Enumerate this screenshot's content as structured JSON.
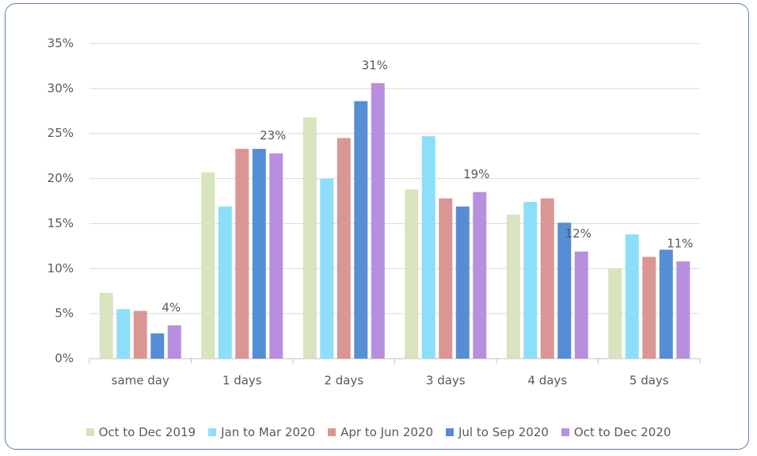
{
  "chart_data": {
    "type": "bar",
    "categories": [
      "same day",
      "1 days",
      "2 days",
      "3 days",
      "4 days",
      "5 days"
    ],
    "series": [
      {
        "name": "Oct to Dec 2019",
        "color": "#d7e4bd",
        "values": [
          7.3,
          20.7,
          26.8,
          18.8,
          16.0,
          10.0
        ]
      },
      {
        "name": "Jan to Mar 2020",
        "color": "#8ddff9",
        "values": [
          5.5,
          16.9,
          20.0,
          24.7,
          17.4,
          13.8
        ]
      },
      {
        "name": "Apr to Jun 2020",
        "color": "#d99694",
        "values": [
          5.3,
          23.3,
          24.5,
          17.8,
          17.8,
          11.3
        ]
      },
      {
        "name": "Jul to Sep 2020",
        "color": "#558ed5",
        "values": [
          2.8,
          23.3,
          28.6,
          16.9,
          15.1,
          12.1
        ]
      },
      {
        "name": "Oct to Dec 2020",
        "color": "#b88fde",
        "values": [
          3.7,
          22.8,
          30.6,
          18.5,
          11.9,
          10.8
        ],
        "value_labels": [
          "4%",
          "23%",
          "31%",
          "19%",
          "12%",
          "11%"
        ]
      }
    ],
    "ylim": [
      0,
      35
    ],
    "yticks": [
      {
        "value": 0,
        "label": "0%"
      },
      {
        "value": 5,
        "label": "5%"
      },
      {
        "value": 10,
        "label": "10%"
      },
      {
        "value": 15,
        "label": "15%"
      },
      {
        "value": 20,
        "label": "20%"
      },
      {
        "value": 25,
        "label": "25%"
      },
      {
        "value": 30,
        "label": "30%"
      },
      {
        "value": 35,
        "label": "35%"
      }
    ],
    "grid": true,
    "legend": "bottom"
  }
}
